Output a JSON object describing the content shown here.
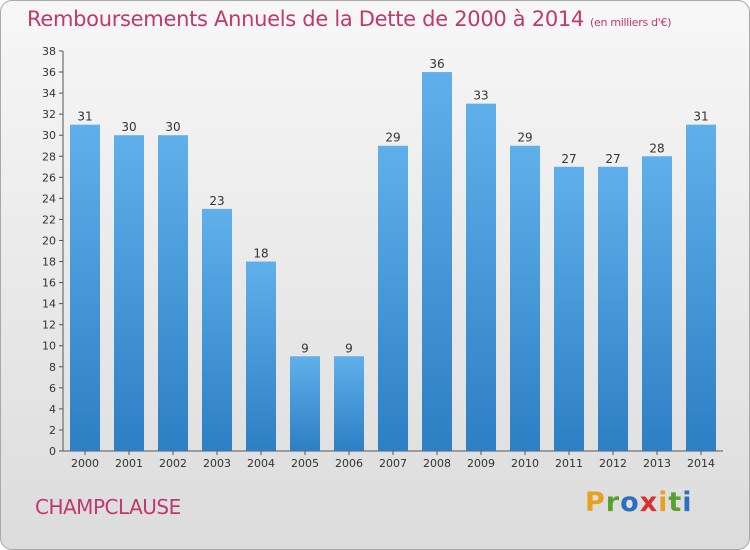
{
  "header": {
    "title": "Remboursements Annuels de la Dette de 2000 à 2014",
    "subtitle": "(en milliers d'€)"
  },
  "footer": {
    "commune": "CHAMPCLAUSE",
    "brand": [
      "P",
      "r",
      "o",
      "x",
      "i",
      "t",
      "i"
    ],
    "brand_colors": [
      "#e8a020",
      "#5aa02c",
      "#2a6fc0",
      "#d83030",
      "#e8a020",
      "#5aa02c",
      "#2a6fc0"
    ]
  },
  "colors": {
    "bar_top": "#5fb0ea",
    "bar_bottom": "#2d7fc4",
    "title": "#c0396b"
  },
  "chart_data": {
    "type": "bar",
    "title": "Remboursements Annuels de la Dette de 2000 à 2014",
    "xlabel": "",
    "ylabel": "",
    "ylim": [
      0,
      38
    ],
    "ytick_step": 2,
    "grid": false,
    "categories": [
      "2000",
      "2001",
      "2002",
      "2003",
      "2004",
      "2005",
      "2006",
      "2007",
      "2008",
      "2009",
      "2010",
      "2011",
      "2012",
      "2013",
      "2014"
    ],
    "values": [
      31,
      30,
      30,
      23,
      18,
      9,
      9,
      29,
      36,
      33,
      29,
      27,
      27,
      28,
      31
    ]
  }
}
